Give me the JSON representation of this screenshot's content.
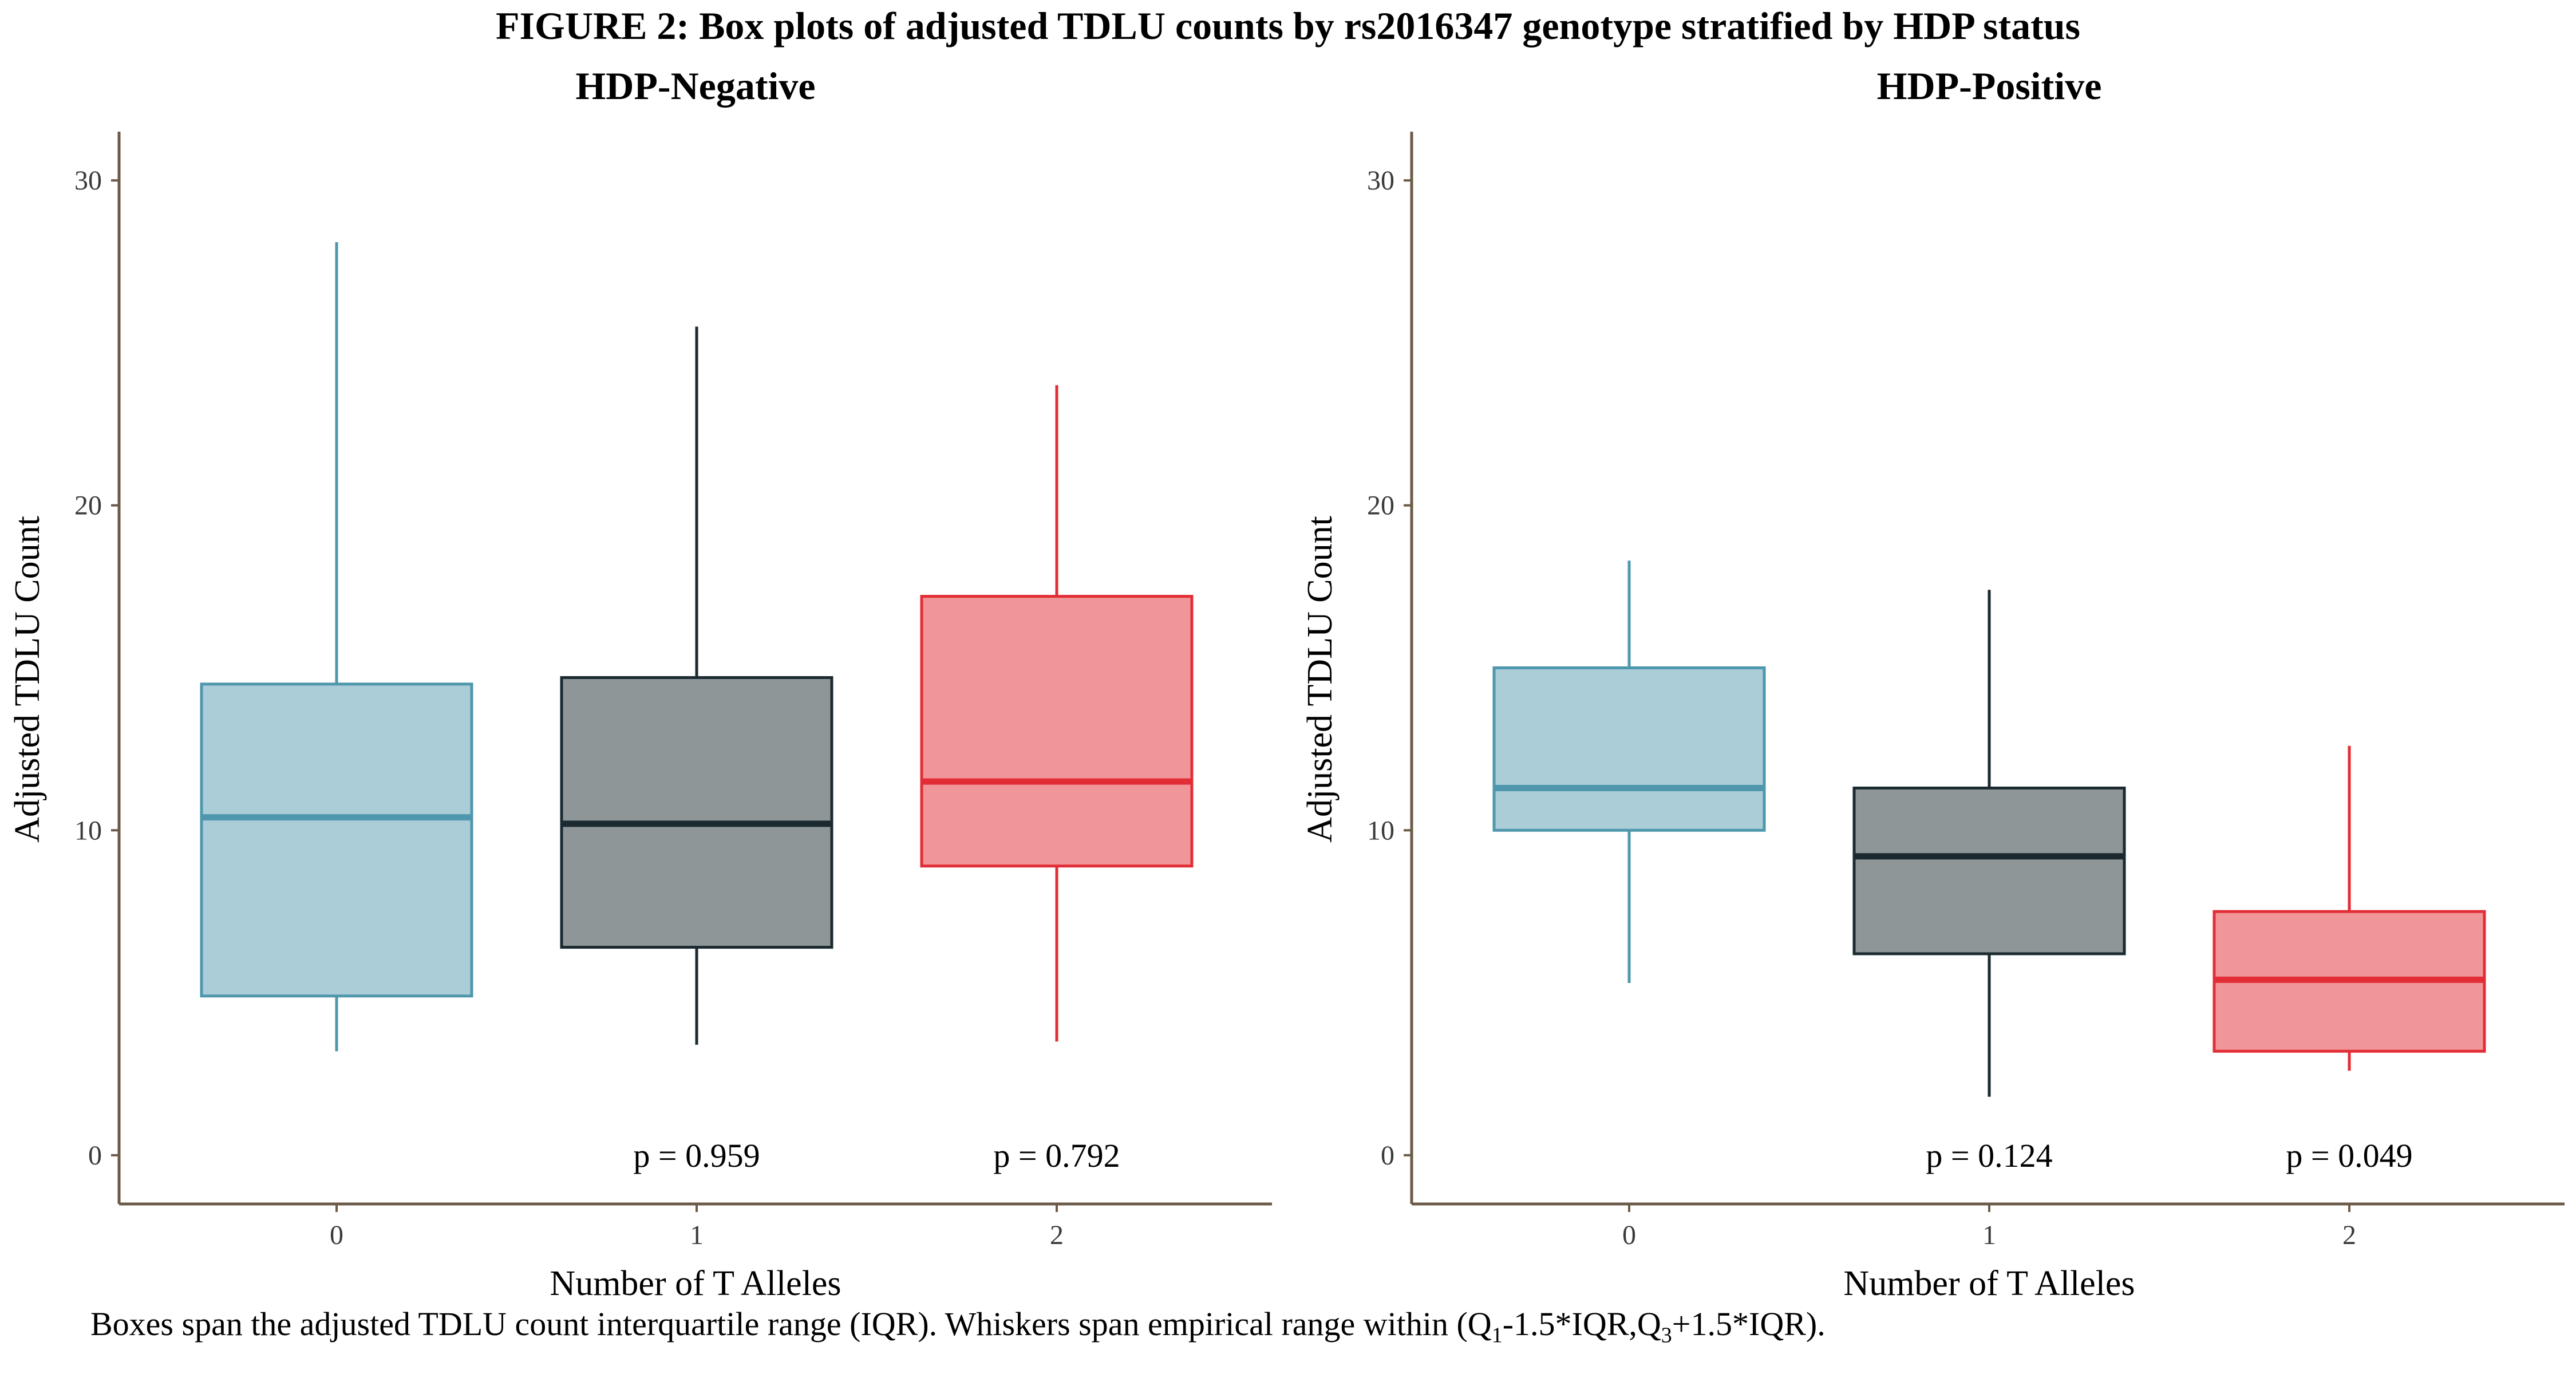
{
  "title": "FIGURE 2: Box plots of adjusted TDLU counts by rs2016347 genotype stratified by HDP status",
  "caption_parts": {
    "pre": "Boxes span the adjusted TDLU count interquartile range (IQR). Whiskers span empirical range within (Q",
    "sub1": "1",
    "mid": "-1.5*IQR,Q",
    "sub3": "3",
    "post": "+1.5*IQR)."
  },
  "colors": {
    "allele0": {
      "fill": "#aacdd8",
      "stroke": "#4f97ad"
    },
    "allele1": {
      "fill": "#8e9698",
      "stroke": "#1a2a30"
    },
    "allele2": {
      "fill": "#f09699",
      "stroke": "#e32d36"
    },
    "axis": "#6b5a48"
  },
  "chart_data": [
    {
      "type": "box",
      "title": "HDP-Negative",
      "xlabel": "Number of T Alleles",
      "ylabel": "Adjusted TDLU Count",
      "ylim": [
        -1.5,
        31.5
      ],
      "yticks": [
        "0",
        "10",
        "20",
        "30"
      ],
      "categories": [
        "0",
        "1",
        "2"
      ],
      "boxes": [
        {
          "category": "0",
          "whisker_low": 3.2,
          "q1": 4.9,
          "median": 10.4,
          "q3": 14.5,
          "whisker_high": 28.1
        },
        {
          "category": "1",
          "whisker_low": 3.4,
          "q1": 6.4,
          "median": 10.2,
          "q3": 14.7,
          "whisker_high": 25.5
        },
        {
          "category": "2",
          "whisker_low": 3.5,
          "q1": 8.9,
          "median": 11.5,
          "q3": 17.2,
          "whisker_high": 23.7
        }
      ],
      "p_values": [
        {
          "category": "1",
          "label": "p = 0.959"
        },
        {
          "category": "2",
          "label": "p = 0.792"
        }
      ]
    },
    {
      "type": "box",
      "title": "HDP-Positive",
      "xlabel": "Number of T Alleles",
      "ylabel": "Adjusted TDLU Count",
      "ylim": [
        -1.5,
        31.5
      ],
      "yticks": [
        "0",
        "10",
        "20",
        "30"
      ],
      "categories": [
        "0",
        "1",
        "2"
      ],
      "boxes": [
        {
          "category": "0",
          "whisker_low": 5.3,
          "q1": 10.0,
          "median": 11.3,
          "q3": 15.0,
          "whisker_high": 18.3
        },
        {
          "category": "1",
          "whisker_low": 1.8,
          "q1": 6.2,
          "median": 9.2,
          "q3": 11.3,
          "whisker_high": 17.4
        },
        {
          "category": "2",
          "whisker_low": 2.6,
          "q1": 3.2,
          "median": 5.4,
          "q3": 7.5,
          "whisker_high": 12.6
        }
      ],
      "p_values": [
        {
          "category": "1",
          "label": "p = 0.124"
        },
        {
          "category": "2",
          "label": "p = 0.049"
        }
      ]
    }
  ]
}
